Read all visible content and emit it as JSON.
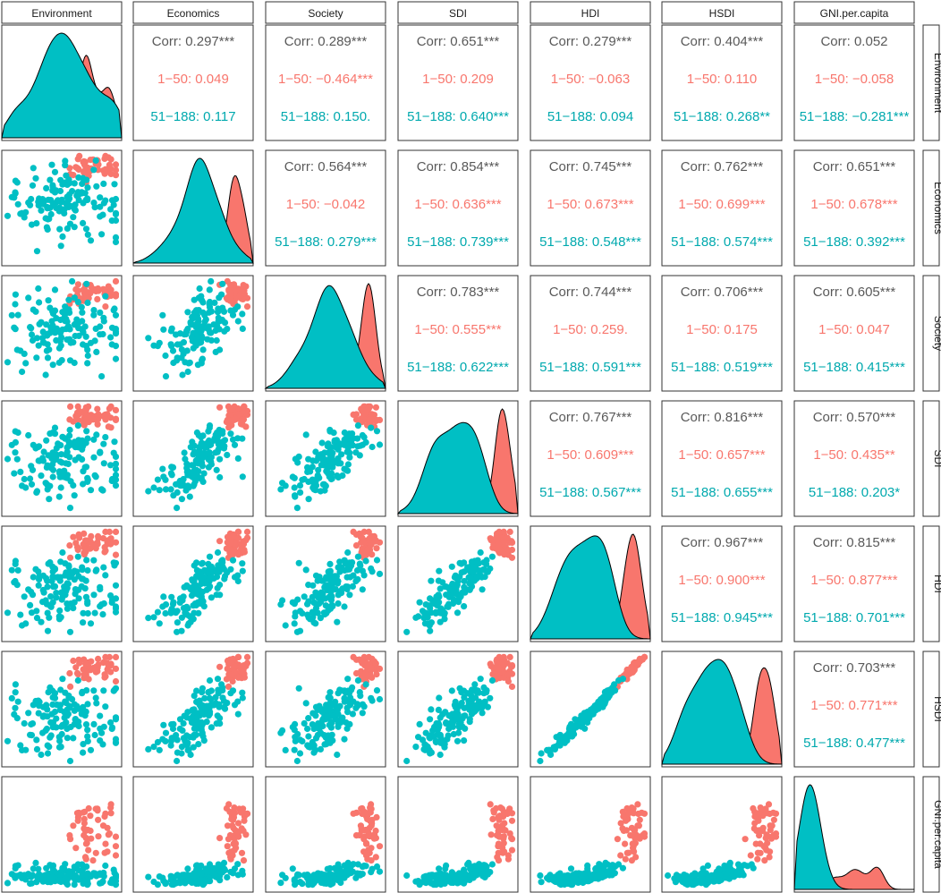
{
  "chart_data": {
    "type": "scatterplot-matrix",
    "variables": [
      "Environment",
      "Economics",
      "Society",
      "SDI",
      "HDI",
      "HSDI",
      "GNI.per.capita"
    ],
    "groups": [
      {
        "name": "1-50",
        "color": "#F8766D"
      },
      {
        "name": "51-188",
        "color": "#00BFC4"
      }
    ],
    "correlations": [
      {
        "row": "Environment",
        "col": "Economics",
        "overall": "Corr: 0.297***",
        "g1": "1−50: 0.049",
        "g2": "51−188: 0.117"
      },
      {
        "row": "Environment",
        "col": "Society",
        "overall": "Corr: 0.289***",
        "g1": "1−50: −0.464***",
        "g2": "51−188: 0.150."
      },
      {
        "row": "Environment",
        "col": "SDI",
        "overall": "Corr: 0.651***",
        "g1": "1−50: 0.209",
        "g2": "51−188: 0.640***"
      },
      {
        "row": "Environment",
        "col": "HDI",
        "overall": "Corr: 0.279***",
        "g1": "1−50: −0.063",
        "g2": "51−188: 0.094"
      },
      {
        "row": "Environment",
        "col": "HSDI",
        "overall": "Corr: 0.404***",
        "g1": "1−50: 0.110",
        "g2": "51−188: 0.268**"
      },
      {
        "row": "Environment",
        "col": "GNI.per.capita",
        "overall": "Corr: 0.052",
        "g1": "1−50: −0.058",
        "g2": "51−188: −0.281***"
      },
      {
        "row": "Economics",
        "col": "Society",
        "overall": "Corr: 0.564***",
        "g1": "1−50: −0.042",
        "g2": "51−188: 0.279***"
      },
      {
        "row": "Economics",
        "col": "SDI",
        "overall": "Corr: 0.854***",
        "g1": "1−50: 0.636***",
        "g2": "51−188: 0.739***"
      },
      {
        "row": "Economics",
        "col": "HDI",
        "overall": "Corr: 0.745***",
        "g1": "1−50: 0.673***",
        "g2": "51−188: 0.548***"
      },
      {
        "row": "Economics",
        "col": "HSDI",
        "overall": "Corr: 0.762***",
        "g1": "1−50: 0.699***",
        "g2": "51−188: 0.574***"
      },
      {
        "row": "Economics",
        "col": "GNI.per.capita",
        "overall": "Corr: 0.651***",
        "g1": "1−50: 0.678***",
        "g2": "51−188: 0.392***"
      },
      {
        "row": "Society",
        "col": "SDI",
        "overall": "Corr: 0.783***",
        "g1": "1−50: 0.555***",
        "g2": "51−188: 0.622***"
      },
      {
        "row": "Society",
        "col": "HDI",
        "overall": "Corr: 0.744***",
        "g1": "1−50: 0.259.",
        "g2": "51−188: 0.591***"
      },
      {
        "row": "Society",
        "col": "HSDI",
        "overall": "Corr: 0.706***",
        "g1": "1−50: 0.175",
        "g2": "51−188: 0.519***"
      },
      {
        "row": "Society",
        "col": "GNI.per.capita",
        "overall": "Corr: 0.605***",
        "g1": "1−50: 0.047",
        "g2": "51−188: 0.415***"
      },
      {
        "row": "SDI",
        "col": "HDI",
        "overall": "Corr: 0.767***",
        "g1": "1−50: 0.609***",
        "g2": "51−188: 0.567***"
      },
      {
        "row": "SDI",
        "col": "HSDI",
        "overall": "Corr: 0.816***",
        "g1": "1−50: 0.657***",
        "g2": "51−188: 0.655***"
      },
      {
        "row": "SDI",
        "col": "GNI.per.capita",
        "overall": "Corr: 0.570***",
        "g1": "1−50: 0.435**",
        "g2": "51−188: 0.203*"
      },
      {
        "row": "HDI",
        "col": "HSDI",
        "overall": "Corr: 0.967***",
        "g1": "1−50: 0.900***",
        "g2": "51−188: 0.945***"
      },
      {
        "row": "HDI",
        "col": "GNI.per.capita",
        "overall": "Corr: 0.815***",
        "g1": "1−50: 0.877***",
        "g2": "51−188: 0.701***"
      },
      {
        "row": "HSDI",
        "col": "GNI.per.capita",
        "overall": "Corr: 0.703***",
        "g1": "1−50: 0.771***",
        "g2": "51−188: 0.477***"
      }
    ],
    "n_countries": 188,
    "group_split": "rank 1-50 vs 51-188"
  }
}
